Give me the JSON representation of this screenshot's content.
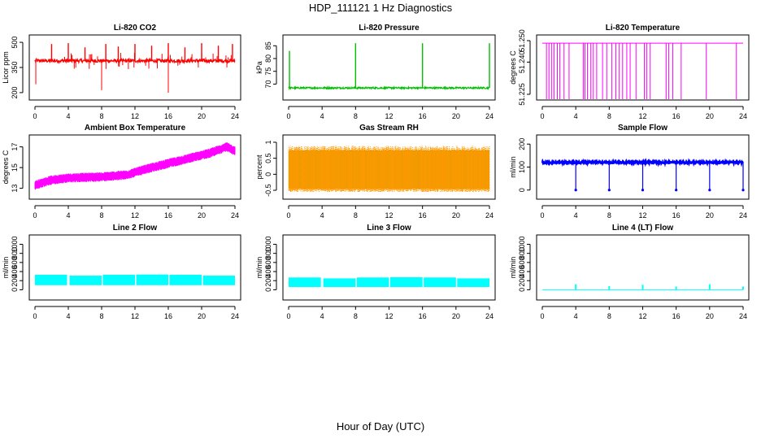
{
  "figure": {
    "title": "HDP_111121  1 Hz Diagnostics",
    "xlabel": "Hour of Day (UTC)"
  },
  "chart_data": [
    {
      "id": "co2",
      "type": "line",
      "title": "Li-820 CO2",
      "ylabel": "Licor ppm",
      "color": "#ff0000",
      "xlim": [
        0,
        24
      ],
      "ylim": [
        190,
        510
      ],
      "xticks": [
        0,
        4,
        8,
        12,
        16,
        20,
        24
      ],
      "yticks": [
        200,
        350,
        500
      ],
      "baseline": 390,
      "noise": 10,
      "pattern": "co2",
      "spikes_up": [
        [
          2,
          490
        ],
        [
          4,
          495
        ],
        [
          6,
          470
        ],
        [
          8.5,
          490
        ],
        [
          10,
          475
        ],
        [
          12,
          490
        ],
        [
          14,
          480
        ],
        [
          16,
          495
        ],
        [
          18,
          470
        ],
        [
          20,
          495
        ],
        [
          22,
          480
        ],
        [
          23.7,
          490
        ]
      ],
      "spikes_down": [
        [
          8,
          215
        ],
        [
          16,
          200
        ],
        [
          0.1,
          250
        ]
      ]
    },
    {
      "id": "pressure",
      "type": "line",
      "title": "Li-820 Pressure",
      "ylabel": "kPa",
      "color": "#00c000",
      "xlim": [
        0,
        24
      ],
      "ylim": [
        66,
        87
      ],
      "xticks": [
        0,
        4,
        8,
        12,
        16,
        20,
        24
      ],
      "yticks": [
        70,
        75,
        80,
        85
      ],
      "baseline": 68.5,
      "noise": 0.3,
      "pattern": "pressure",
      "spikes_up": [
        [
          0.1,
          83
        ],
        [
          8,
          86
        ],
        [
          16,
          86
        ],
        [
          24,
          86
        ]
      ],
      "spikes_down": []
    },
    {
      "id": "li820temp",
      "type": "line",
      "title": "Li-820 Temperature",
      "ylabel": "degrees C",
      "color": "#ff00ff",
      "xlim": [
        0,
        24
      ],
      "ylim": [
        51.225,
        51.25
      ],
      "ytick_labels": [
        "51.225",
        "51.240",
        "51.250"
      ],
      "yticks": [
        51.225,
        51.24,
        51.25
      ],
      "xticks": [
        0,
        4,
        8,
        12,
        16,
        20,
        24
      ],
      "baseline": 51.2488,
      "pattern": "step",
      "drops": [
        0.5,
        0.8,
        1.1,
        1.4,
        1.8,
        2.1,
        2.6,
        3.2,
        4.9,
        5.1,
        5.4,
        5.8,
        6.1,
        6.5,
        7.2,
        7.7,
        8.3,
        8.8,
        9.2,
        9.6,
        10.1,
        10.5,
        11.2,
        12.2,
        12.5,
        12.9,
        14.8,
        15.1,
        15.6,
        16.6,
        19.6,
        23.2
      ]
    },
    {
      "id": "ambient",
      "type": "line",
      "title": "Ambient Box Temperature",
      "ylabel": "degrees C",
      "color": "#ff00ff",
      "xlim": [
        0,
        24
      ],
      "ylim": [
        12.5,
        17.6
      ],
      "xticks": [
        0,
        4,
        8,
        12,
        16,
        20,
        24
      ],
      "yticks": [
        13,
        15,
        17
      ],
      "pattern": "trend",
      "trend": [
        [
          0,
          13.3
        ],
        [
          2,
          13.8
        ],
        [
          4,
          14.0
        ],
        [
          8,
          14.1
        ],
        [
          11,
          14.3
        ],
        [
          14,
          15.0
        ],
        [
          18,
          15.8
        ],
        [
          21,
          16.4
        ],
        [
          23,
          17.0
        ],
        [
          24,
          16.6
        ]
      ],
      "noise": 0.45
    },
    {
      "id": "rh",
      "type": "line",
      "title": "Gas Stream RH",
      "ylabel": "percent",
      "color": "#ff9900",
      "color2": "#c8a000",
      "xlim": [
        0,
        24
      ],
      "ylim": [
        -0.6,
        1.05
      ],
      "xticks": [
        0,
        4,
        8,
        12,
        16,
        20,
        24
      ],
      "yticks": [
        -0.5,
        0.0,
        0.5,
        1.0
      ],
      "pattern": "band",
      "band": [
        -0.45,
        0.75
      ],
      "noise": 0.2
    },
    {
      "id": "sampleflow",
      "type": "line",
      "title": "Sample Flow",
      "ylabel": "ml/min",
      "color": "#0000ff",
      "xlim": [
        0,
        24
      ],
      "ylim": [
        -15,
        215
      ],
      "xticks": [
        0,
        4,
        8,
        12,
        16,
        20,
        24
      ],
      "yticks": [
        0,
        100,
        200
      ],
      "baseline": 120,
      "noise": 8,
      "pattern": "sample",
      "drops_to": 0,
      "drops": [
        4,
        8,
        12,
        16,
        20,
        24
      ]
    },
    {
      "id": "line2",
      "type": "line",
      "title": "Line 2 Flow",
      "ylabel": "ml/min",
      "color": "#00ffff",
      "xlim": [
        0,
        24
      ],
      "ylim": [
        -100,
        1080
      ],
      "xticks": [
        0,
        4,
        8,
        12,
        16,
        20,
        24
      ],
      "yticks": [
        0,
        200,
        400,
        600,
        800,
        1000
      ],
      "pattern": "cyanband",
      "band": [
        100,
        330
      ],
      "gaps": [
        4,
        8,
        12,
        16,
        20,
        24
      ]
    },
    {
      "id": "line3",
      "type": "line",
      "title": "Line 3 Flow",
      "ylabel": "ml/min",
      "color": "#00ffff",
      "xlim": [
        0,
        24
      ],
      "ylim": [
        -100,
        1080
      ],
      "xticks": [
        0,
        4,
        8,
        12,
        16,
        20,
        24
      ],
      "yticks": [
        0,
        200,
        400,
        600,
        800,
        1000
      ],
      "pattern": "cyanband",
      "band": [
        60,
        270
      ],
      "gaps": [
        4,
        8,
        12,
        16,
        20,
        24
      ]
    },
    {
      "id": "line4",
      "type": "line",
      "title": "Line 4 (LT) Flow",
      "ylabel": "ml/min",
      "color": "#00ffff",
      "xlim": [
        0,
        24
      ],
      "ylim": [
        -100,
        1080
      ],
      "xticks": [
        0,
        4,
        8,
        12,
        16,
        20,
        24
      ],
      "yticks": [
        0,
        200,
        400,
        600,
        800,
        1000
      ],
      "pattern": "spikes",
      "baseline": 0,
      "spikes_up": [
        [
          4,
          120
        ],
        [
          8,
          80
        ],
        [
          12,
          110
        ],
        [
          16,
          70
        ],
        [
          20,
          120
        ],
        [
          24,
          70
        ]
      ]
    }
  ]
}
